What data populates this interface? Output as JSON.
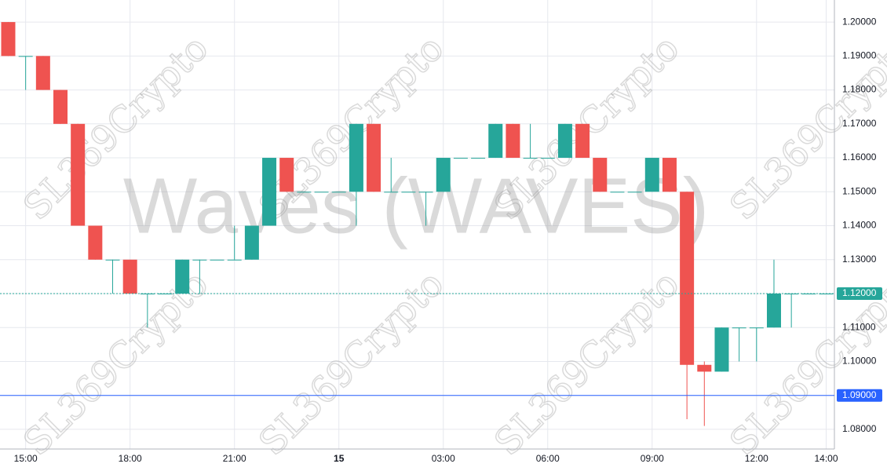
{
  "chart_data": {
    "type": "candlestick",
    "watermark": "Waves (WAVES)",
    "brand": "SL369Crypto",
    "x": [
      "14:30",
      "15:00",
      "15:30",
      "16:00",
      "16:30",
      "17:00",
      "17:30",
      "18:00",
      "18:30",
      "19:00",
      "19:30",
      "20:00",
      "20:30",
      "21:00",
      "21:30",
      "22:00",
      "22:30",
      "23:00",
      "23:30",
      "00:00",
      "00:30",
      "01:00",
      "01:30",
      "02:00",
      "02:30",
      "03:00",
      "03:30",
      "04:00",
      "04:30",
      "05:00",
      "05:30",
      "06:00",
      "06:30",
      "07:00",
      "07:30",
      "08:00",
      "08:30",
      "09:00",
      "09:30",
      "10:00",
      "10:30",
      "11:00",
      "11:30",
      "12:00",
      "12:30",
      "13:00",
      "13:30",
      "14:00"
    ],
    "open": [
      1.2,
      1.19,
      1.19,
      1.18,
      1.17,
      1.14,
      1.13,
      1.13,
      1.12,
      1.12,
      1.12,
      1.13,
      1.13,
      1.13,
      1.13,
      1.14,
      1.16,
      1.15,
      1.15,
      1.15,
      1.15,
      1.17,
      1.15,
      1.15,
      1.15,
      1.15,
      1.16,
      1.16,
      1.16,
      1.17,
      1.16,
      1.16,
      1.16,
      1.17,
      1.16,
      1.15,
      1.15,
      1.15,
      1.16,
      1.15,
      1.099,
      1.097,
      1.11,
      1.11,
      1.11,
      1.12,
      1.12,
      1.12
    ],
    "high": [
      1.2,
      1.19,
      1.19,
      1.18,
      1.17,
      1.14,
      1.13,
      1.13,
      1.12,
      1.12,
      1.13,
      1.13,
      1.13,
      1.14,
      1.14,
      1.16,
      1.16,
      1.15,
      1.15,
      1.15,
      1.17,
      1.17,
      1.16,
      1.15,
      1.15,
      1.16,
      1.16,
      1.16,
      1.17,
      1.17,
      1.17,
      1.16,
      1.17,
      1.17,
      1.16,
      1.15,
      1.15,
      1.16,
      1.16,
      1.15,
      1.1,
      1.11,
      1.11,
      1.11,
      1.13,
      1.12,
      1.12,
      1.12
    ],
    "low": [
      1.19,
      1.18,
      1.18,
      1.17,
      1.14,
      1.13,
      1.12,
      1.12,
      1.11,
      1.12,
      1.12,
      1.12,
      1.13,
      1.13,
      1.13,
      1.14,
      1.15,
      1.15,
      1.15,
      1.15,
      1.14,
      1.15,
      1.15,
      1.15,
      1.14,
      1.15,
      1.16,
      1.16,
      1.16,
      1.16,
      1.16,
      1.16,
      1.16,
      1.16,
      1.15,
      1.15,
      1.15,
      1.15,
      1.15,
      1.083,
      1.081,
      1.097,
      1.1,
      1.1,
      1.11,
      1.11,
      1.12,
      1.12
    ],
    "close": [
      1.19,
      1.19,
      1.18,
      1.17,
      1.14,
      1.13,
      1.13,
      1.12,
      1.12,
      1.12,
      1.13,
      1.13,
      1.13,
      1.13,
      1.14,
      1.16,
      1.15,
      1.15,
      1.15,
      1.15,
      1.17,
      1.15,
      1.15,
      1.15,
      1.15,
      1.16,
      1.16,
      1.16,
      1.17,
      1.16,
      1.16,
      1.16,
      1.17,
      1.16,
      1.15,
      1.15,
      1.15,
      1.16,
      1.15,
      1.099,
      1.097,
      1.11,
      1.11,
      1.11,
      1.12,
      1.12,
      1.12,
      1.12
    ],
    "up_color": "#26a69a",
    "down_color": "#ef5350",
    "ylim": [
      1.0742,
      1.2065
    ],
    "yticks": [
      {
        "value": 1.08,
        "label": "1.08000"
      },
      {
        "value": 1.09,
        "label": "1.09000"
      },
      {
        "value": 1.1,
        "label": "1.10000"
      },
      {
        "value": 1.11,
        "label": "1.11000"
      },
      {
        "value": 1.12,
        "label": "1.12000"
      },
      {
        "value": 1.13,
        "label": "1.13000"
      },
      {
        "value": 1.14,
        "label": "1.14000"
      },
      {
        "value": 1.15,
        "label": "1.15000"
      },
      {
        "value": 1.16,
        "label": "1.16000"
      },
      {
        "value": 1.17,
        "label": "1.17000"
      },
      {
        "value": 1.18,
        "label": "1.18000"
      },
      {
        "value": 1.19,
        "label": "1.19000"
      },
      {
        "value": 1.2,
        "label": "1.20000"
      }
    ],
    "xticks": [
      "15:00",
      "18:00",
      "21:00",
      {
        "value": "00:00",
        "label": "15"
      },
      "03:00",
      "06:00",
      "09:00",
      "12:00",
      "14:00"
    ],
    "grid": true,
    "price_lines": [
      {
        "value": 1.12,
        "label": "1.12000",
        "color": "#26a69a",
        "style": "dotted"
      },
      {
        "value": 1.09,
        "label": "1.09000",
        "color": "#2962ff",
        "style": "solid"
      }
    ]
  }
}
